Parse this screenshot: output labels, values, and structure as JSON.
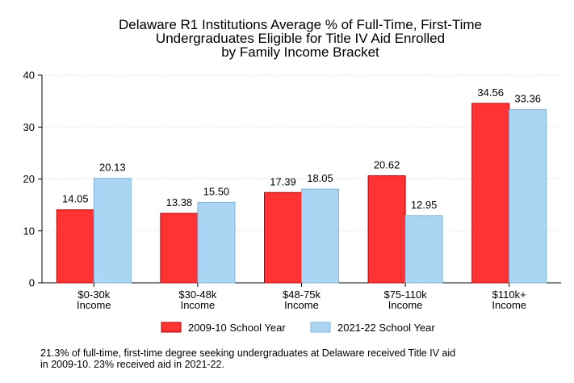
{
  "chart_data": {
    "type": "bar",
    "title": [
      "Delaware R1 Institutions Average % of Full-Time, First-Time",
      "Undergraduates Eligible for Title IV Aid Enrolled",
      "by Family Income Bracket"
    ],
    "categories": [
      [
        "$0-30k",
        "Income"
      ],
      [
        "$30-48k",
        "Income"
      ],
      [
        "$48-75k",
        "Income"
      ],
      [
        "$75-110k",
        "Income"
      ],
      [
        "$110k+",
        "Income"
      ]
    ],
    "series": [
      {
        "name": "2009-10 School Year",
        "color": "#ff3333",
        "stroke": "#b30000",
        "values": [
          14.05,
          13.38,
          17.39,
          20.62,
          34.56
        ],
        "labels": [
          "14.05",
          "13.38",
          "17.39",
          "20.62",
          "34.56"
        ]
      },
      {
        "name": "2021-22 School Year",
        "color": "#abd5f2",
        "stroke": "#7fb4dc",
        "values": [
          20.13,
          15.5,
          18.05,
          12.95,
          33.36
        ],
        "labels": [
          "20.13",
          "15.50",
          "18.05",
          "12.95",
          "33.36"
        ]
      }
    ],
    "ylim": [
      0,
      40
    ],
    "yticks": [
      "0",
      "10",
      "20",
      "30",
      "40"
    ],
    "grid": true,
    "legend_position": "bottom"
  },
  "footnote": "21.3% of full-time, first-time degree seeking undergraduates at Delaware received Title IV aid\nin 2009-10. 23% received aid in 2021-22."
}
